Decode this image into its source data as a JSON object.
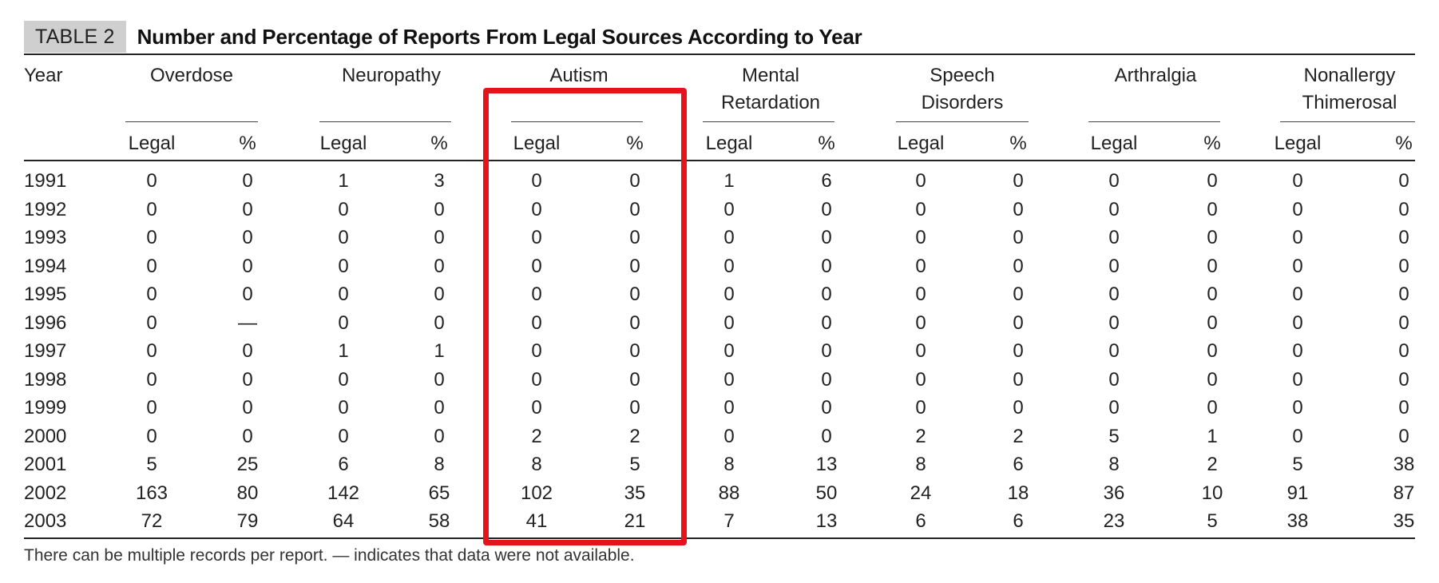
{
  "table": {
    "label": "TABLE 2",
    "title": "Number and Percentage of Reports From Legal Sources According to Year",
    "year_header": "Year",
    "groups": [
      {
        "line1": "Overdose",
        "line2": ""
      },
      {
        "line1": "Neuropathy",
        "line2": ""
      },
      {
        "line1": "Autism",
        "line2": ""
      },
      {
        "line1": "Mental",
        "line2": "Retardation"
      },
      {
        "line1": "Speech",
        "line2": "Disorders"
      },
      {
        "line1": "Arthralgia",
        "line2": ""
      },
      {
        "line1": "Nonallergy",
        "line2": "Thimerosal"
      }
    ],
    "sub_headers": [
      "Legal",
      "%"
    ],
    "rows": [
      {
        "year": "1991",
        "values": [
          "0",
          "0",
          "1",
          "3",
          "0",
          "0",
          "1",
          "6",
          "0",
          "0",
          "0",
          "0",
          "0",
          "0"
        ]
      },
      {
        "year": "1992",
        "values": [
          "0",
          "0",
          "0",
          "0",
          "0",
          "0",
          "0",
          "0",
          "0",
          "0",
          "0",
          "0",
          "0",
          "0"
        ]
      },
      {
        "year": "1993",
        "values": [
          "0",
          "0",
          "0",
          "0",
          "0",
          "0",
          "0",
          "0",
          "0",
          "0",
          "0",
          "0",
          "0",
          "0"
        ]
      },
      {
        "year": "1994",
        "values": [
          "0",
          "0",
          "0",
          "0",
          "0",
          "0",
          "0",
          "0",
          "0",
          "0",
          "0",
          "0",
          "0",
          "0"
        ]
      },
      {
        "year": "1995",
        "values": [
          "0",
          "0",
          "0",
          "0",
          "0",
          "0",
          "0",
          "0",
          "0",
          "0",
          "0",
          "0",
          "0",
          "0"
        ]
      },
      {
        "year": "1996",
        "values": [
          "0",
          "—",
          "0",
          "0",
          "0",
          "0",
          "0",
          "0",
          "0",
          "0",
          "0",
          "0",
          "0",
          "0"
        ]
      },
      {
        "year": "1997",
        "values": [
          "0",
          "0",
          "1",
          "1",
          "0",
          "0",
          "0",
          "0",
          "0",
          "0",
          "0",
          "0",
          "0",
          "0"
        ]
      },
      {
        "year": "1998",
        "values": [
          "0",
          "0",
          "0",
          "0",
          "0",
          "0",
          "0",
          "0",
          "0",
          "0",
          "0",
          "0",
          "0",
          "0"
        ]
      },
      {
        "year": "1999",
        "values": [
          "0",
          "0",
          "0",
          "0",
          "0",
          "0",
          "0",
          "0",
          "0",
          "0",
          "0",
          "0",
          "0",
          "0"
        ]
      },
      {
        "year": "2000",
        "values": [
          "0",
          "0",
          "0",
          "0",
          "2",
          "2",
          "0",
          "0",
          "2",
          "2",
          "5",
          "1",
          "0",
          "0"
        ]
      },
      {
        "year": "2001",
        "values": [
          "5",
          "25",
          "6",
          "8",
          "8",
          "5",
          "8",
          "13",
          "8",
          "6",
          "8",
          "2",
          "5",
          "38"
        ]
      },
      {
        "year": "2002",
        "values": [
          "163",
          "80",
          "142",
          "65",
          "102",
          "35",
          "88",
          "50",
          "24",
          "18",
          "36",
          "10",
          "91",
          "87"
        ]
      },
      {
        "year": "2003",
        "values": [
          "72",
          "79",
          "64",
          "58",
          "41",
          "21",
          "7",
          "13",
          "6",
          "6",
          "23",
          "5",
          "38",
          "35"
        ]
      }
    ],
    "footnote": "There can be multiple records per report. — indicates that data were not available."
  },
  "colors": {
    "highlight": "#e5141a",
    "label_bg": "#cfcfcf"
  }
}
